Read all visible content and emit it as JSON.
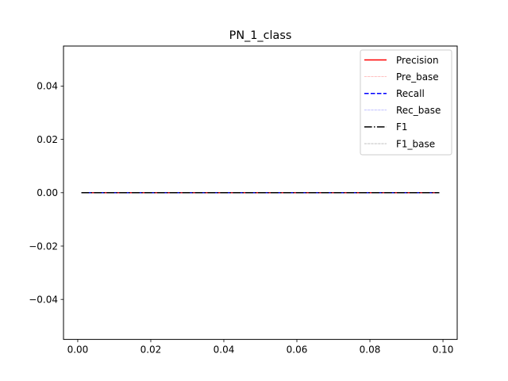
{
  "chart_data": {
    "type": "line",
    "title": "PN_1_class",
    "xlabel": "",
    "ylabel": "",
    "xlim": [
      -0.0039,
      0.1039
    ],
    "ylim": [
      -0.055,
      0.055
    ],
    "xticks": [
      0.0,
      0.02,
      0.04,
      0.06,
      0.08,
      0.1
    ],
    "xtick_labels": [
      "0.00",
      "0.02",
      "0.04",
      "0.06",
      "0.08",
      "0.10"
    ],
    "yticks": [
      -0.04,
      -0.02,
      0.0,
      0.02,
      0.04
    ],
    "ytick_labels": [
      "−0.04",
      "−0.02",
      "0.00",
      "0.02",
      "0.04"
    ],
    "grid": false,
    "legend_position": "upper right",
    "x": [
      0.001,
      0.099
    ],
    "series": [
      {
        "name": "Precision",
        "values": [
          0.0,
          0.0
        ],
        "color": "#ff0000",
        "style": "solid"
      },
      {
        "name": "Pre_base",
        "values": [
          0.0,
          0.0
        ],
        "color": "#ff0000",
        "style": "dotted-thin"
      },
      {
        "name": "Recall",
        "values": [
          0.0,
          0.0
        ],
        "color": "#0000ff",
        "style": "dashed"
      },
      {
        "name": "Rec_base",
        "values": [
          0.0,
          0.0
        ],
        "color": "#0000ff",
        "style": "dotted-thin"
      },
      {
        "name": "F1",
        "values": [
          0.0,
          0.0
        ],
        "color": "#000000",
        "style": "dashdot"
      },
      {
        "name": "F1_base",
        "values": [
          0.0,
          0.0
        ],
        "color": "#000000",
        "style": "dotted-thin"
      }
    ]
  }
}
